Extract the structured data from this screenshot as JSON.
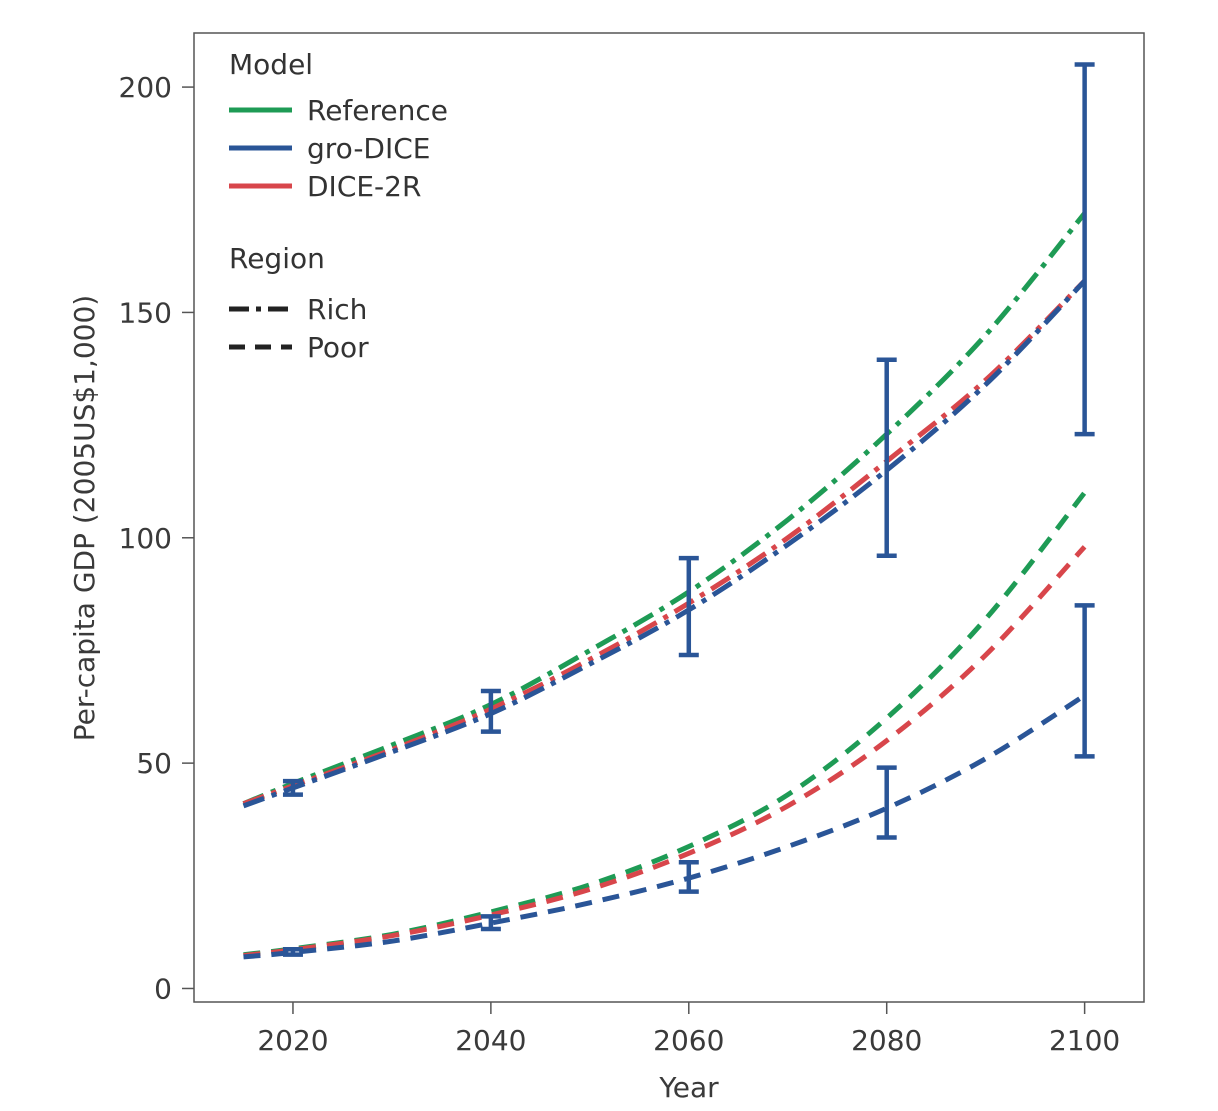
{
  "chart_data": {
    "type": "line",
    "xlabel": "Year",
    "ylabel": "Per-capita GDP (2005US$1,000)",
    "xlim": [
      2010,
      2106
    ],
    "ylim": [
      -3,
      212
    ],
    "x_ticks": [
      2020,
      2040,
      2060,
      2080,
      2100
    ],
    "y_ticks": [
      0,
      50,
      100,
      150,
      200
    ],
    "grid": false,
    "legend": {
      "placement": "top-left",
      "model_title": "Model",
      "model_entries": [
        {
          "name": "Reference",
          "color": "#1e9b55"
        },
        {
          "name": "gro-DICE",
          "color": "#2a5597"
        },
        {
          "name": "DICE-2R",
          "color": "#d8464b"
        }
      ],
      "region_title": "Region",
      "region_entries": [
        {
          "name": "Rich",
          "dash": "dash-dot"
        },
        {
          "name": "Poor",
          "dash": "dashed"
        }
      ]
    },
    "series": [
      {
        "name": "Reference",
        "region": "Rich",
        "color": "#1e9b55",
        "dash": "dash-dot",
        "x": [
          2015,
          2020,
          2030,
          2040,
          2050,
          2060,
          2070,
          2080,
          2090,
          2100
        ],
        "y": [
          41,
          45.5,
          54,
          63,
          75,
          88,
          104,
          123,
          145,
          172
        ]
      },
      {
        "name": "DICE-2R",
        "region": "Rich",
        "color": "#d8464b",
        "dash": "dash-dot",
        "x": [
          2015,
          2020,
          2030,
          2040,
          2050,
          2060,
          2070,
          2080,
          2090,
          2100
        ],
        "y": [
          41,
          45,
          53,
          62,
          73,
          85.5,
          100,
          117,
          135,
          157
        ]
      },
      {
        "name": "gro-DICE",
        "region": "Rich",
        "color": "#2a5597",
        "dash": "dash-dot",
        "x": [
          2015,
          2020,
          2030,
          2040,
          2050,
          2060,
          2070,
          2080,
          2090,
          2100
        ],
        "y": [
          40.5,
          44.5,
          52.5,
          61,
          72,
          84,
          98.5,
          115,
          134,
          157
        ]
      },
      {
        "name": "Reference",
        "region": "Poor",
        "color": "#1e9b55",
        "dash": "dashed",
        "x": [
          2015,
          2020,
          2030,
          2040,
          2050,
          2060,
          2070,
          2080,
          2090,
          2100
        ],
        "y": [
          7.5,
          8.8,
          12,
          17,
          23,
          31.5,
          43,
          60,
          82,
          110
        ]
      },
      {
        "name": "DICE-2R",
        "region": "Poor",
        "color": "#d8464b",
        "dash": "dashed",
        "x": [
          2015,
          2020,
          2030,
          2040,
          2050,
          2060,
          2070,
          2080,
          2090,
          2100
        ],
        "y": [
          7.3,
          8.6,
          11.7,
          16.3,
          22,
          30,
          40.5,
          55,
          74,
          98
        ]
      },
      {
        "name": "gro-DICE",
        "region": "Poor",
        "color": "#2a5597",
        "dash": "dashed",
        "x": [
          2015,
          2020,
          2030,
          2040,
          2050,
          2060,
          2070,
          2080,
          2090,
          2100
        ],
        "y": [
          7,
          8,
          10.5,
          14.5,
          19,
          24.5,
          31.5,
          40,
          51,
          65
        ]
      }
    ],
    "error_bars": [
      {
        "region": "Rich",
        "x": 2020,
        "low": 43,
        "high": 46
      },
      {
        "region": "Rich",
        "x": 2040,
        "low": 57,
        "high": 66
      },
      {
        "region": "Rich",
        "x": 2060,
        "low": 74,
        "high": 95.5
      },
      {
        "region": "Rich",
        "x": 2080,
        "low": 96,
        "high": 139.5
      },
      {
        "region": "Rich",
        "x": 2100,
        "low": 123,
        "high": 205
      },
      {
        "region": "Poor",
        "x": 2020,
        "low": 7.5,
        "high": 8.7
      },
      {
        "region": "Poor",
        "x": 2040,
        "low": 13.2,
        "high": 16
      },
      {
        "region": "Poor",
        "x": 2060,
        "low": 21.5,
        "high": 28
      },
      {
        "region": "Poor",
        "x": 2080,
        "low": 33.5,
        "high": 49
      },
      {
        "region": "Poor",
        "x": 2100,
        "low": 51.5,
        "high": 85
      }
    ],
    "error_bar_color": "#2a5597"
  }
}
